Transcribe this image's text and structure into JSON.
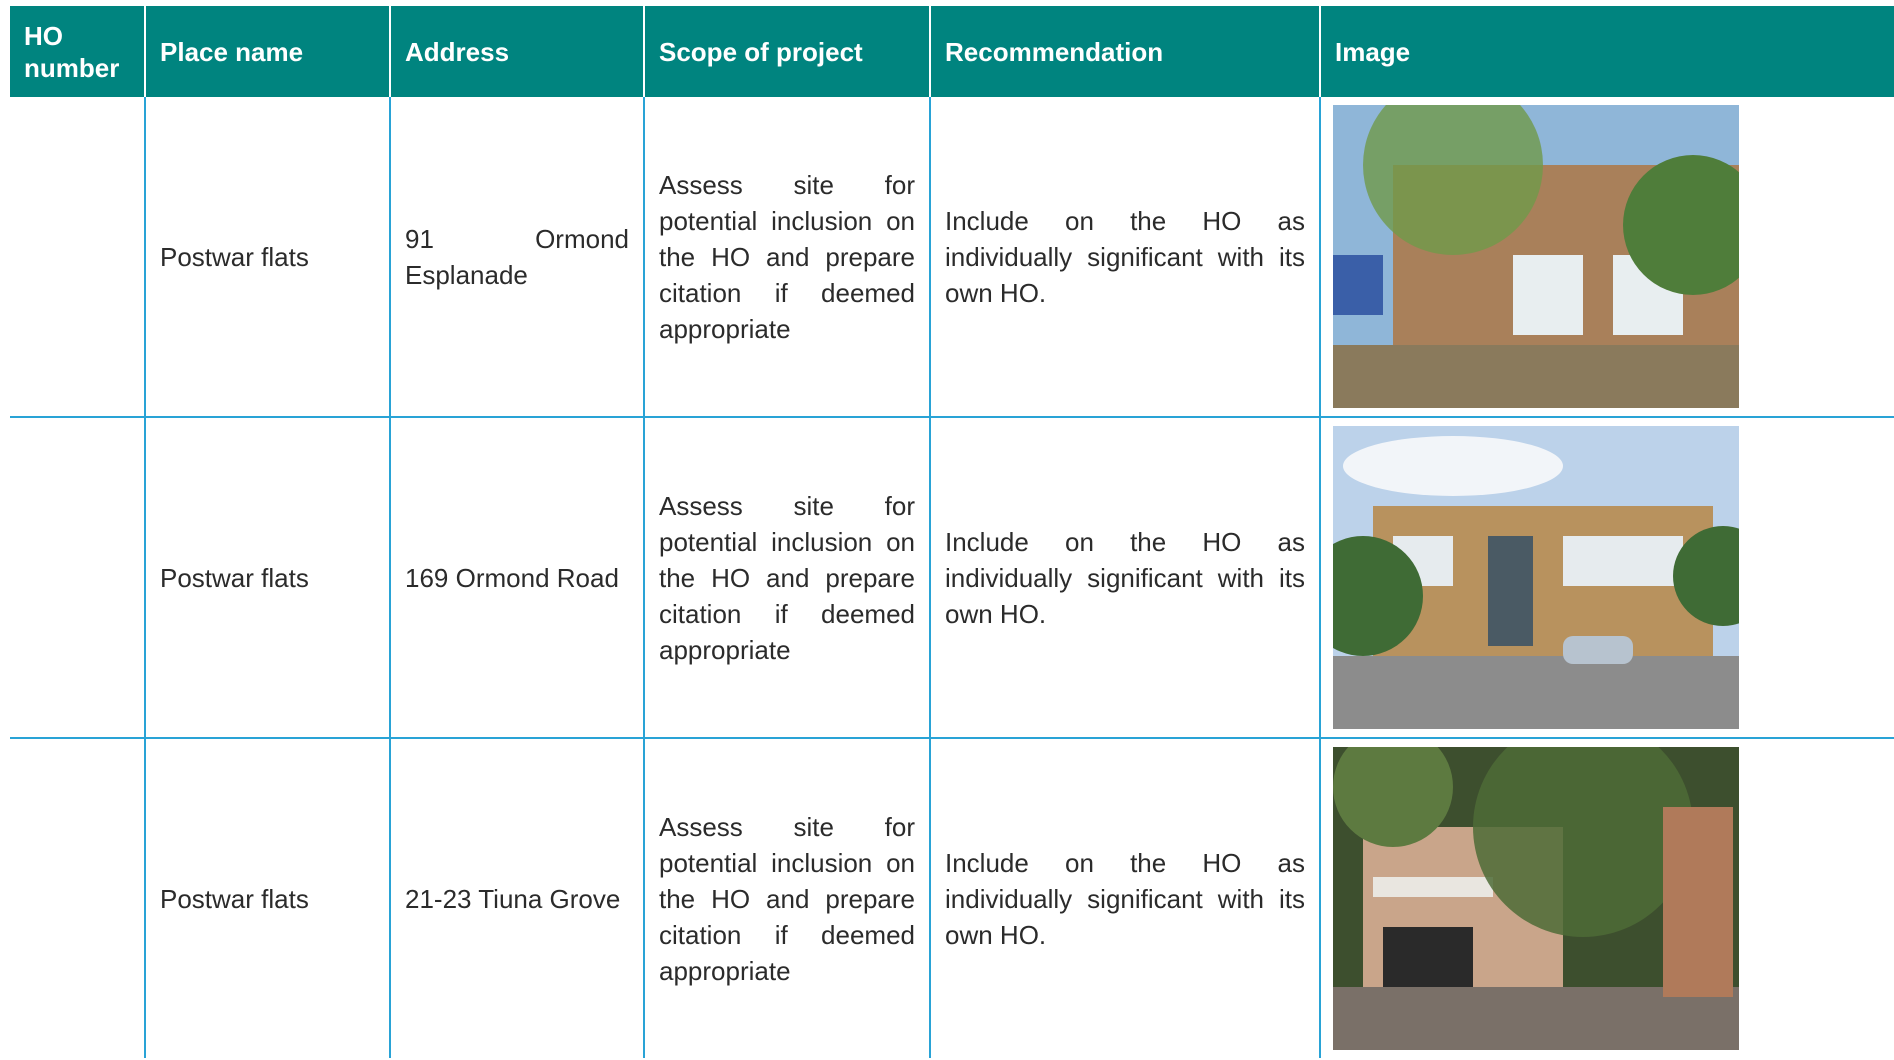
{
  "table": {
    "header": [
      "HO number",
      "Place name",
      "Address",
      "Scope of project",
      "Recommendation",
      "Image"
    ],
    "rows": [
      {
        "place_name": "Postwar flats",
        "address": "91 Ormond Esplanade",
        "scope": "Assess site for potential inclusion on the HO and prepare citation if deemed appropriate",
        "recommendation": "Include on the HO as individually significant with its own HO."
      },
      {
        "place_name": "Postwar flats",
        "address": "169 Ormond Road",
        "scope": "Assess site for potential inclusion on the HO and prepare citation if deemed appropriate",
        "recommendation": "Include on the HO as individually significant with its own HO."
      },
      {
        "place_name": "Postwar flats",
        "address": "21-23 Tiuna Grove",
        "scope": "Assess site for potential inclusion on the HO and prepare citation if deemed appropriate",
        "recommendation": "Include on the HO as individually significant with its own HO."
      }
    ]
  }
}
